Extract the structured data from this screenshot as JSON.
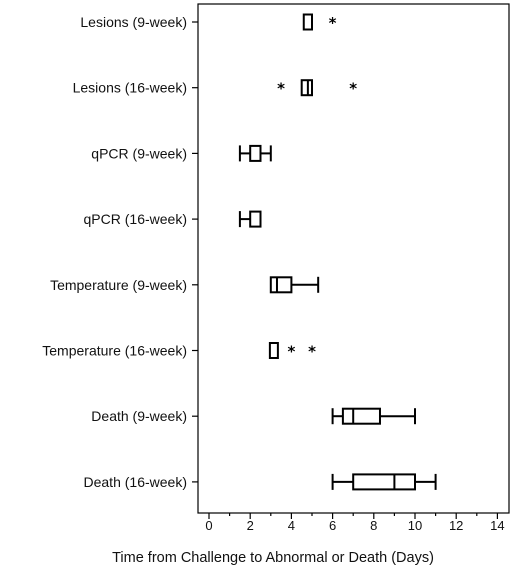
{
  "chart_data": {
    "type": "boxplot",
    "orientation": "horizontal",
    "xlabel": "Time from Challenge to Abnormal or Death (Days)",
    "xlim": [
      -0.5,
      14.5
    ],
    "xticks": [
      0,
      2,
      4,
      6,
      8,
      10,
      12,
      14
    ],
    "xtick_labels": [
      "0",
      "2",
      "4",
      "6",
      "8",
      "10",
      "12",
      "14"
    ],
    "minor_ticks": [
      1,
      3,
      5,
      7,
      9,
      11,
      13
    ],
    "grid": false,
    "categories": [
      "Lesions (9-week)",
      "Lesions (16-week)",
      "qPCR (9-week)",
      "qPCR (16-week)",
      "Temperature (9-week)",
      "Temperature (16-week)",
      "Death (9-week)",
      "Death (16-week)"
    ],
    "boxes": [
      {
        "category": "Lesions (9-week)",
        "whisker_low": 4.6,
        "q1": 4.6,
        "median": 4.6,
        "q3": 5.0,
        "whisker_high": 5.0,
        "outliers": [
          6.0
        ]
      },
      {
        "category": "Lesions (16-week)",
        "whisker_low": 4.5,
        "q1": 4.5,
        "median": 4.8,
        "q3": 5.0,
        "whisker_high": 5.0,
        "outliers": [
          3.5,
          7.0
        ]
      },
      {
        "category": "qPCR (9-week)",
        "whisker_low": 1.5,
        "q1": 2.0,
        "median": 2.0,
        "q3": 2.5,
        "whisker_high": 3.0,
        "outliers": []
      },
      {
        "category": "qPCR (16-week)",
        "whisker_low": 1.5,
        "q1": 2.0,
        "median": 2.0,
        "q3": 2.5,
        "whisker_high": 2.5,
        "outliers": []
      },
      {
        "category": "Temperature (9-week)",
        "whisker_low": 3.0,
        "q1": 3.0,
        "median": 3.3,
        "q3": 4.0,
        "whisker_high": 5.3,
        "outliers": []
      },
      {
        "category": "Temperature (16-week)",
        "whisker_low": 3.0,
        "q1": 3.0,
        "median": 3.0,
        "q3": 3.3,
        "whisker_high": 3.3,
        "outliers": [
          4.0,
          5.0
        ]
      },
      {
        "category": "Death (9-week)",
        "whisker_low": 6.0,
        "q1": 6.5,
        "median": 7.0,
        "q3": 8.3,
        "whisker_high": 10.0,
        "outliers": []
      },
      {
        "category": "Death (16-week)",
        "whisker_low": 6.0,
        "q1": 7.0,
        "median": 9.0,
        "q3": 10.0,
        "whisker_high": 11.0,
        "outliers": []
      }
    ]
  }
}
